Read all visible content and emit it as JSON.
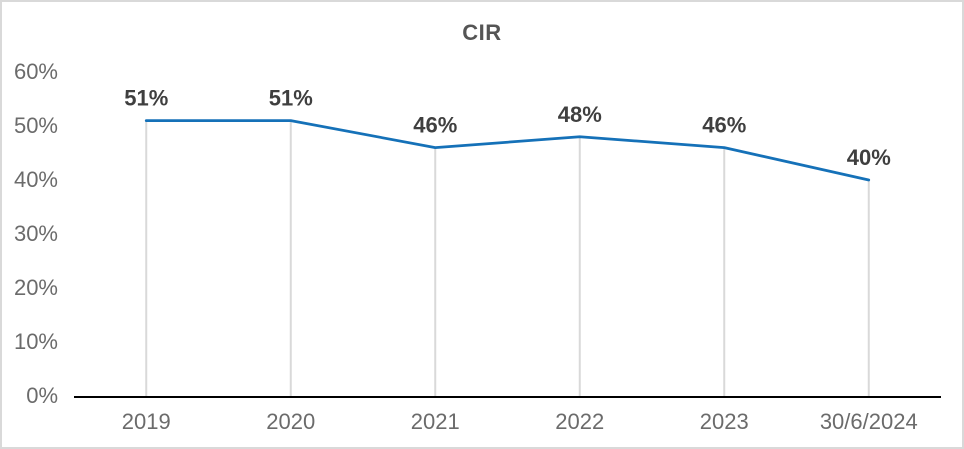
{
  "chart_data": {
    "type": "line",
    "title": "CIR",
    "categories": [
      "2019",
      "2020",
      "2021",
      "2022",
      "2023",
      "30/6/2024"
    ],
    "series": [
      {
        "name": "CIR",
        "values": [
          51,
          51,
          46,
          48,
          46,
          40
        ],
        "data_labels": [
          "51%",
          "51%",
          "46%",
          "48%",
          "46%",
          "40%"
        ]
      }
    ],
    "xlabel": "",
    "ylabel": "",
    "ylim": [
      0,
      60
    ],
    "y_ticks": {
      "values": [
        0,
        10,
        20,
        30,
        40,
        50,
        60
      ],
      "labels": [
        "0%",
        "10%",
        "20%",
        "30%",
        "40%",
        "50%",
        "60%"
      ]
    },
    "grid": "none",
    "drop_lines": true,
    "legend": "none",
    "markers": "none",
    "colors": {
      "line": "#1571B8",
      "drop_line": "#D9D9D9",
      "axis_line": "#000000",
      "tick_label": "#6B6B6B",
      "data_label": "#3F3F3F",
      "title": "#555555",
      "border": "#D9D9D9",
      "background": "#FFFFFF"
    }
  }
}
